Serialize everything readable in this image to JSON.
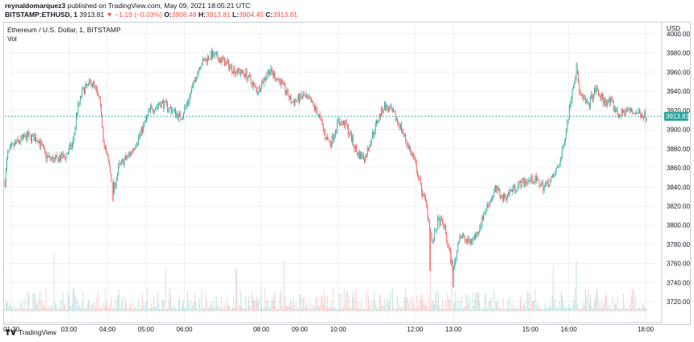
{
  "header": {
    "author": "reynaldomarquez3",
    "published_text": "published on TradingView.com, May 09, 2021 18:05:21 UTC",
    "symbol": "BITSTAMP:ETHUSD, 1",
    "last": "3913.81",
    "change": "−1.19 (−0.03%)",
    "o_label": "O:",
    "o_value": "3906.48",
    "h_label": "H:",
    "h_value": "3913.81",
    "l_label": "L:",
    "l_value": "3904.45",
    "c_label": "C:",
    "c_value": "3913.81"
  },
  "legend": {
    "title": "Ethereum / U.S. Dollar, 1, BITSTAMP",
    "vol": "Vol"
  },
  "footer": {
    "brand": "TradingView"
  },
  "colors": {
    "up": "#26a69a",
    "down": "#ef5350",
    "current": "#26a69a",
    "grid": "#eef0f3"
  },
  "chart_data": {
    "type": "candlestick",
    "title": "Ethereum / U.S. Dollar, 1, BITSTAMP",
    "currency": "USD",
    "ylim": [
      3710,
      4005
    ],
    "y_ticks": [
      4000,
      3980,
      3960,
      3940,
      3920,
      3900,
      3880,
      3860,
      3840,
      3820,
      3800,
      3780,
      3760,
      3740,
      3720
    ],
    "x_ticks": [
      "01:30",
      "03:00",
      "04:00",
      "05:00",
      "06:00",
      "08:00",
      "09:00",
      "10:00",
      "12:00",
      "13:00",
      "15:00",
      "16:00",
      "18:00"
    ],
    "x_tick_hours": [
      1.5,
      3,
      4,
      5,
      6,
      8,
      9,
      10,
      12,
      13,
      15,
      16,
      18
    ],
    "x_range_hours": [
      1.33,
      18.25
    ],
    "current_price": 3913.81,
    "price_path": [
      [
        1.33,
        3845
      ],
      [
        1.4,
        3875
      ],
      [
        1.6,
        3885
      ],
      [
        1.9,
        3893
      ],
      [
        2.2,
        3890
      ],
      [
        2.4,
        3872
      ],
      [
        2.6,
        3868
      ],
      [
        2.9,
        3872
      ],
      [
        3.1,
        3885
      ],
      [
        3.2,
        3918
      ],
      [
        3.35,
        3940
      ],
      [
        3.6,
        3950
      ],
      [
        3.75,
        3935
      ],
      [
        3.85,
        3915
      ],
      [
        3.9,
        3885
      ],
      [
        4.05,
        3862
      ],
      [
        4.15,
        3835
      ],
      [
        4.3,
        3862
      ],
      [
        4.6,
        3875
      ],
      [
        4.85,
        3895
      ],
      [
        5.1,
        3920
      ],
      [
        5.4,
        3928
      ],
      [
        5.7,
        3920
      ],
      [
        5.9,
        3912
      ],
      [
        6.1,
        3930
      ],
      [
        6.4,
        3968
      ],
      [
        6.7,
        3978
      ],
      [
        7.0,
        3972
      ],
      [
        7.3,
        3962
      ],
      [
        7.6,
        3958
      ],
      [
        7.9,
        3940
      ],
      [
        8.2,
        3962
      ],
      [
        8.5,
        3950
      ],
      [
        8.8,
        3928
      ],
      [
        9.1,
        3935
      ],
      [
        9.3,
        3928
      ],
      [
        9.5,
        3915
      ],
      [
        9.65,
        3895
      ],
      [
        9.8,
        3885
      ],
      [
        10.0,
        3908
      ],
      [
        10.2,
        3905
      ],
      [
        10.5,
        3875
      ],
      [
        10.7,
        3870
      ],
      [
        10.85,
        3890
      ],
      [
        11.05,
        3912
      ],
      [
        11.2,
        3925
      ],
      [
        11.4,
        3918
      ],
      [
        11.6,
        3905
      ],
      [
        11.8,
        3885
      ],
      [
        12.0,
        3865
      ],
      [
        12.15,
        3840
      ],
      [
        12.3,
        3820
      ],
      [
        12.45,
        3780
      ],
      [
        12.6,
        3805
      ],
      [
        12.75,
        3800
      ],
      [
        12.9,
        3770
      ],
      [
        13.0,
        3752
      ],
      [
        13.15,
        3790
      ],
      [
        13.4,
        3782
      ],
      [
        13.6,
        3790
      ],
      [
        13.85,
        3818
      ],
      [
        14.1,
        3838
      ],
      [
        14.3,
        3828
      ],
      [
        14.55,
        3838
      ],
      [
        14.8,
        3845
      ],
      [
        15.1,
        3848
      ],
      [
        15.35,
        3840
      ],
      [
        15.6,
        3850
      ],
      [
        15.8,
        3870
      ],
      [
        15.95,
        3905
      ],
      [
        16.1,
        3945
      ],
      [
        16.2,
        3962
      ],
      [
        16.3,
        3935
      ],
      [
        16.5,
        3925
      ],
      [
        16.7,
        3942
      ],
      [
        16.9,
        3930
      ],
      [
        17.1,
        3928
      ],
      [
        17.3,
        3915
      ],
      [
        17.5,
        3920
      ],
      [
        17.75,
        3918
      ],
      [
        18.05,
        3913.81
      ]
    ],
    "extreme_wicks": [
      {
        "x": 4.15,
        "low": 3825
      },
      {
        "x": 6.85,
        "high": 3982
      },
      {
        "x": 12.4,
        "low": 3752
      },
      {
        "x": 13.0,
        "low": 3735
      },
      {
        "x": 16.2,
        "high": 3970
      }
    ],
    "volume_spikes": [
      {
        "x": 2.6,
        "v": 0.95
      },
      {
        "x": 5.5,
        "v": 0.7
      },
      {
        "x": 7.35,
        "v": 0.7
      },
      {
        "x": 8.6,
        "v": 0.85
      },
      {
        "x": 12.4,
        "v": 0.65
      },
      {
        "x": 12.95,
        "v": 1.0
      },
      {
        "x": 15.6,
        "v": 0.75
      },
      {
        "x": 16.2,
        "v": 0.85
      }
    ]
  }
}
